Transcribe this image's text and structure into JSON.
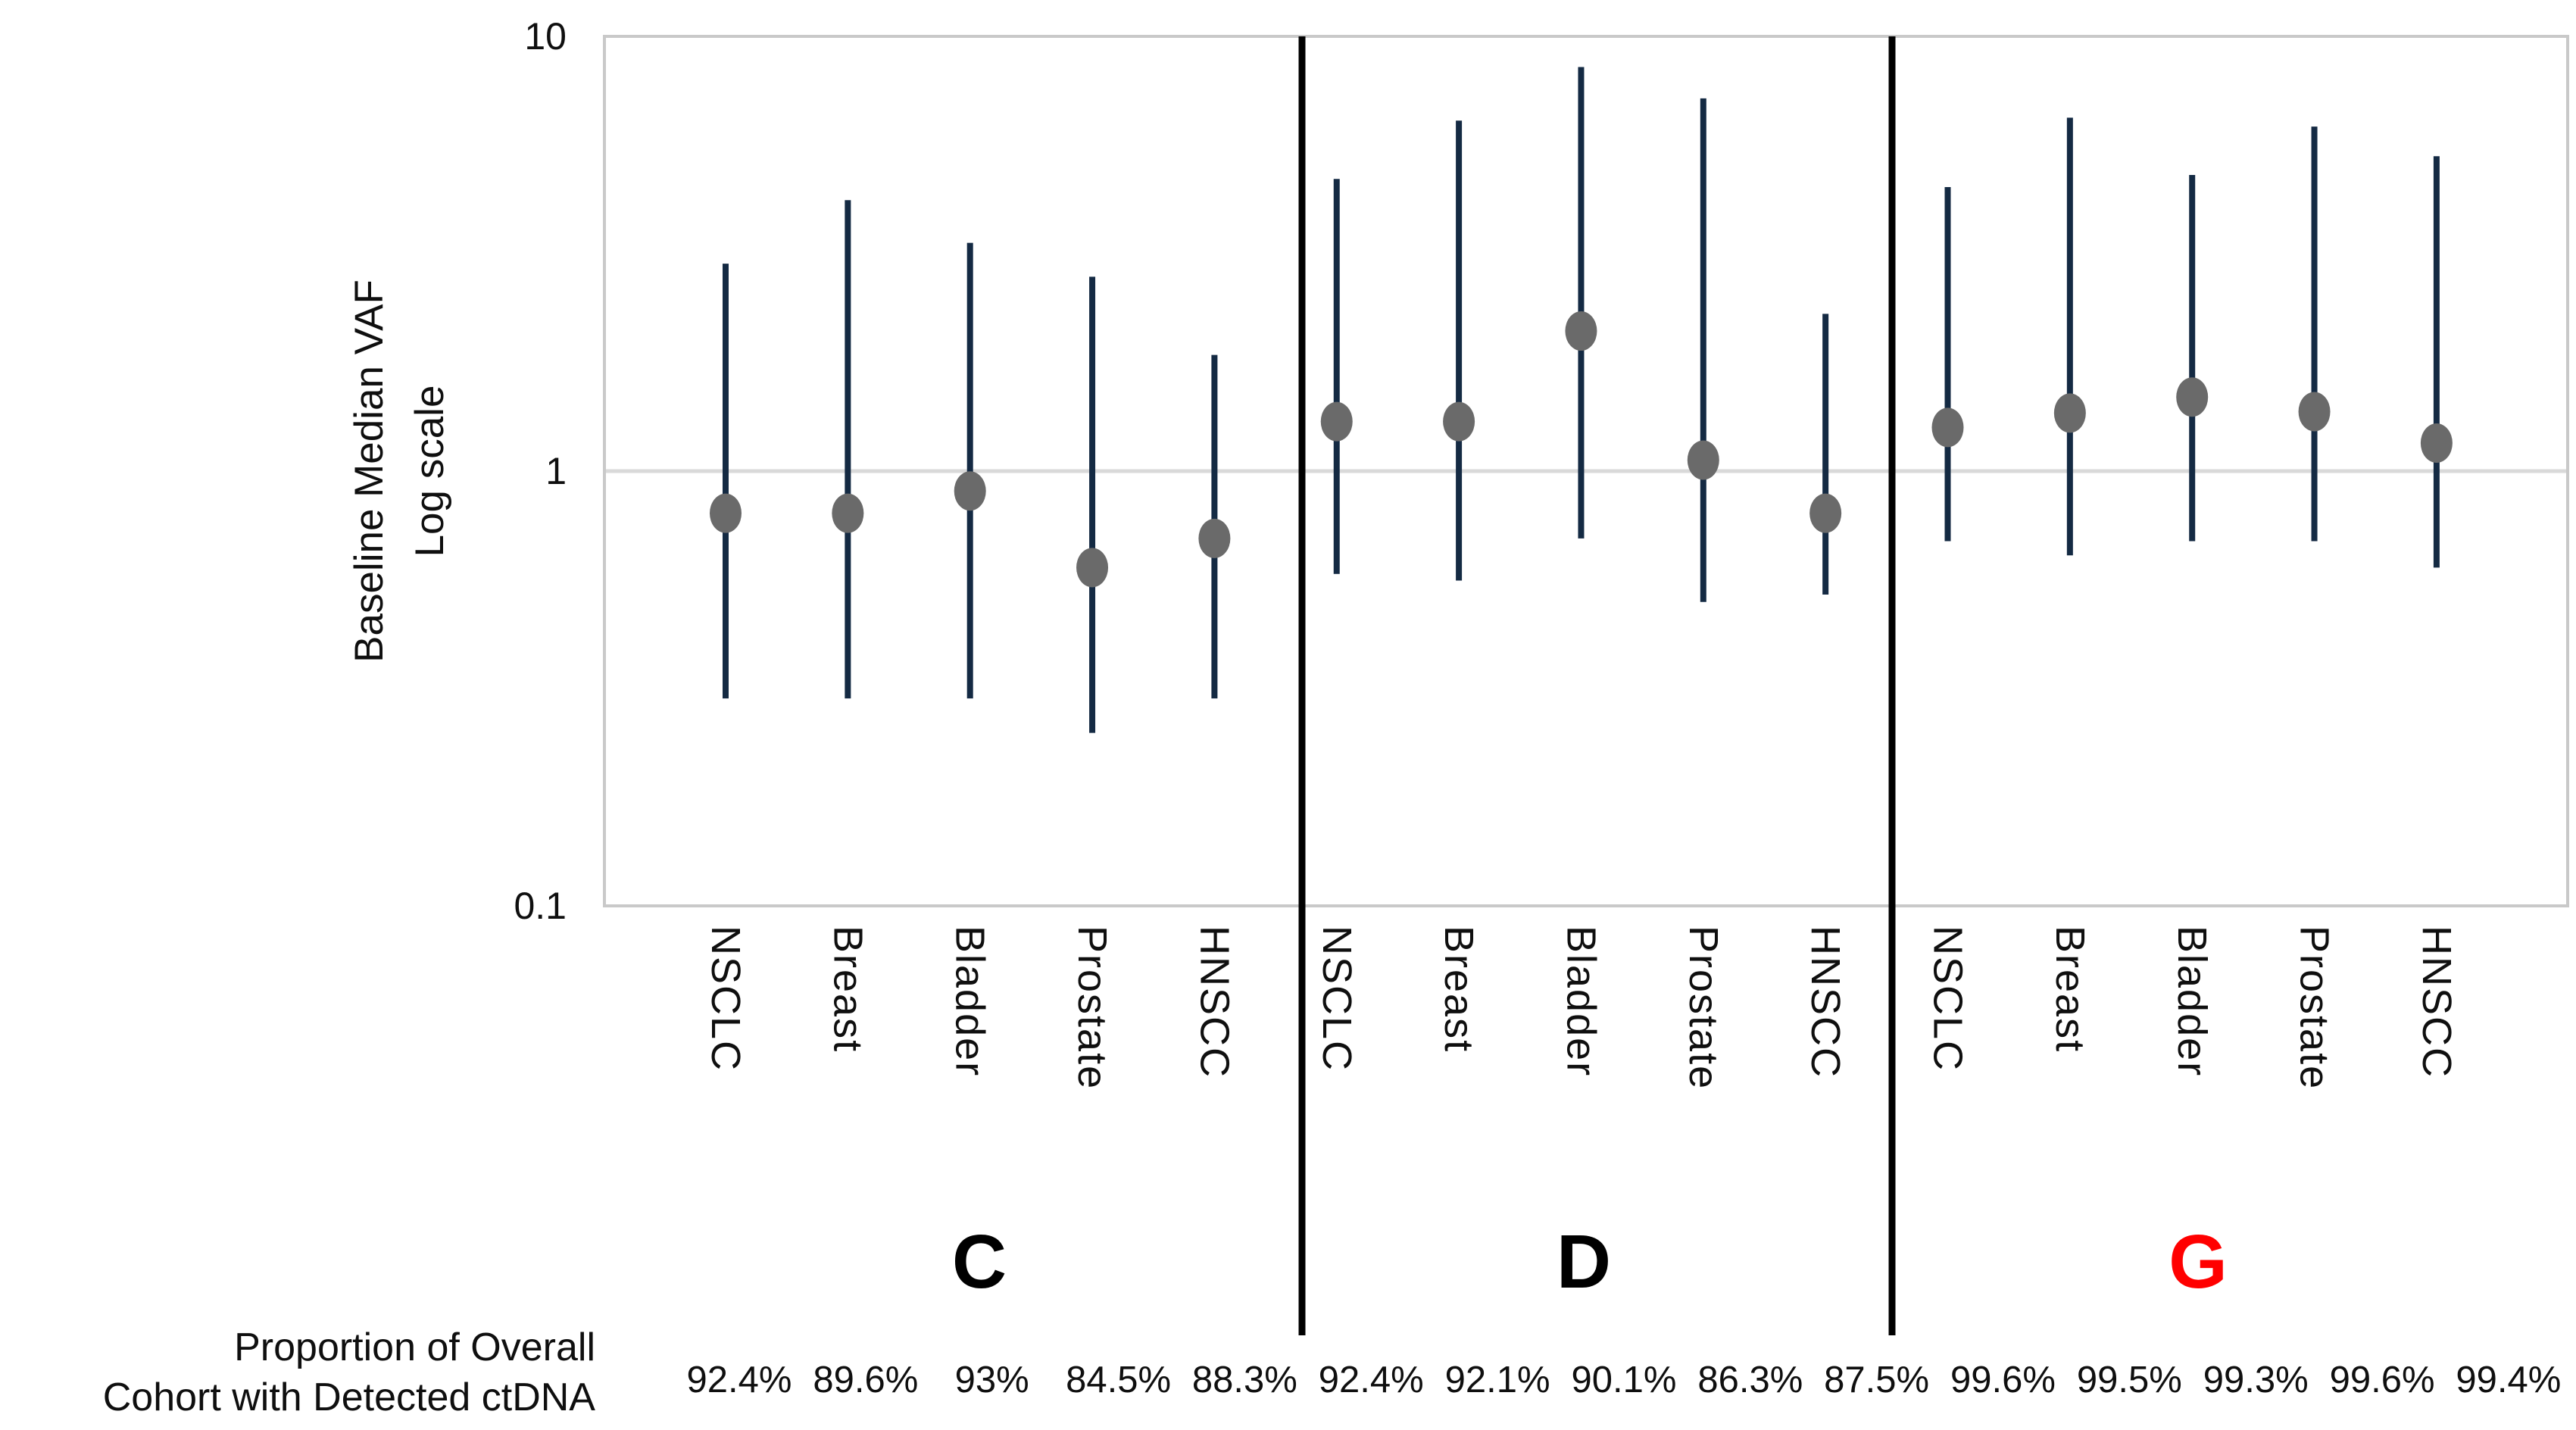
{
  "page": {
    "background": "#ffffff"
  },
  "chart_data": {
    "type": "scatter",
    "subtype": "dot-with-vertical-range",
    "title": "",
    "y_axis": {
      "label_line1": "Baseline Median VAF",
      "label_line2": "Log scale",
      "scale": "log",
      "tick_labels": [
        "10",
        "1",
        "0.1"
      ],
      "tick_values": [
        10,
        1,
        0.1
      ],
      "range": [
        0.1,
        10
      ],
      "gridline_at": 1
    },
    "x_axis": {
      "categories_per_group": [
        "NSCLC",
        "Breast",
        "Bladder",
        "Prostate",
        "HNSCC"
      ]
    },
    "legend": "none",
    "groups": [
      {
        "label": "C",
        "label_color": "#000000",
        "points": [
          {
            "category": "NSCLC",
            "low": 0.3,
            "median": 0.8,
            "high": 3.0,
            "detected_pct": "92.4%"
          },
          {
            "category": "Breast",
            "low": 0.3,
            "median": 0.8,
            "high": 4.2,
            "detected_pct": "89.6%"
          },
          {
            "category": "Bladder",
            "low": 0.3,
            "median": 0.9,
            "high": 3.35,
            "detected_pct": "93%"
          },
          {
            "category": "Prostate",
            "low": 0.25,
            "median": 0.6,
            "high": 2.8,
            "detected_pct": "84.5%"
          },
          {
            "category": "HNSCC",
            "low": 0.3,
            "median": 0.7,
            "high": 1.85,
            "detected_pct": "88.3%"
          }
        ]
      },
      {
        "label": "D",
        "label_color": "#000000",
        "points": [
          {
            "category": "NSCLC",
            "low": 0.58,
            "median": 1.3,
            "high": 4.7,
            "detected_pct": "92.4%"
          },
          {
            "category": "Breast",
            "low": 0.56,
            "median": 1.3,
            "high": 6.4,
            "detected_pct": "92.1%"
          },
          {
            "category": "Bladder",
            "low": 0.7,
            "median": 2.1,
            "high": 8.5,
            "detected_pct": "90.1%"
          },
          {
            "category": "Prostate",
            "low": 0.5,
            "median": 1.06,
            "high": 7.2,
            "detected_pct": "86.3%"
          },
          {
            "category": "HNSCC",
            "low": 0.52,
            "median": 0.8,
            "high": 2.3,
            "detected_pct": "87.5%"
          }
        ]
      },
      {
        "label": "G",
        "label_color": "#ff0000",
        "points": [
          {
            "category": "NSCLC",
            "low": 0.69,
            "median": 1.26,
            "high": 4.5,
            "detected_pct": "99.6%"
          },
          {
            "category": "Breast",
            "low": 0.64,
            "median": 1.36,
            "high": 6.5,
            "detected_pct": "99.5%"
          },
          {
            "category": "Bladder",
            "low": 0.69,
            "median": 1.48,
            "high": 4.8,
            "detected_pct": "99.3%"
          },
          {
            "category": "Prostate",
            "low": 0.69,
            "median": 1.37,
            "high": 6.2,
            "detected_pct": "99.6%"
          },
          {
            "category": "HNSCC",
            "low": 0.6,
            "median": 1.16,
            "high": 5.3,
            "detected_pct": "99.4%"
          }
        ]
      }
    ],
    "footer_label_line1": "Proportion of Overall",
    "footer_label_line2": "Cohort with Detected ctDNA",
    "colors": {
      "whisker": "#142a43",
      "dot": "#6a6a6a",
      "gridline": "#d9d9d9",
      "plot_border": "#c9c9c9",
      "divider": "#000000",
      "text": "#0f0f0f",
      "highlight_group_label": "#ff0000"
    }
  }
}
